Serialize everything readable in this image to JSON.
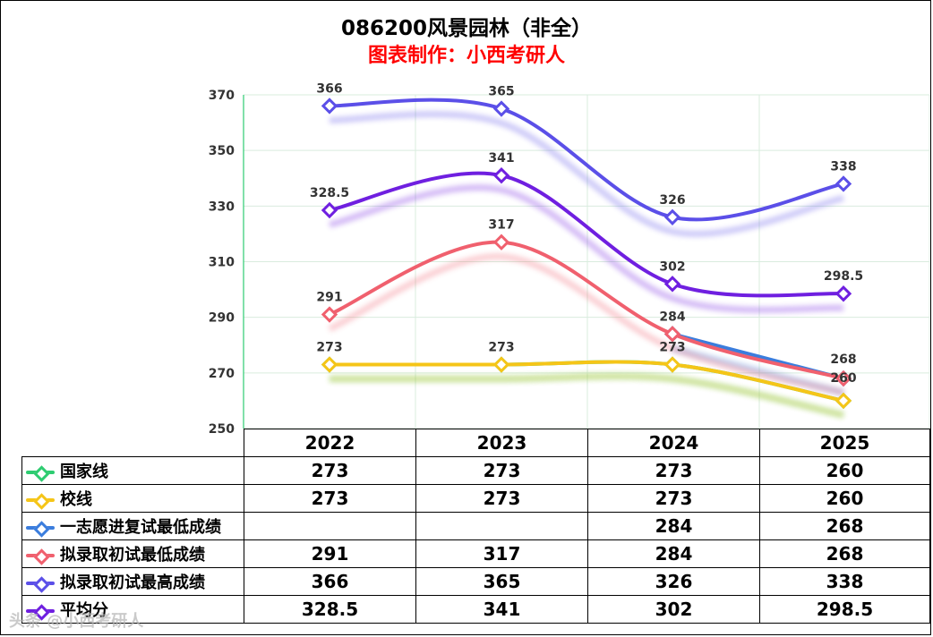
{
  "chart_data": {
    "type": "line",
    "title": "086200风景园林（非全）",
    "subtitle": "图表制作：小西考研人",
    "categories": [
      "2022",
      "2023",
      "2024",
      "2025"
    ],
    "ylim": [
      250,
      370
    ],
    "yticks": [
      250,
      270,
      290,
      310,
      330,
      350,
      370
    ],
    "grid": true,
    "smooth": true,
    "series": [
      {
        "name": "国家线",
        "color": "#2ecc71",
        "values": [
          273,
          273,
          273,
          260
        ],
        "labels": [
          "273",
          "273",
          "273",
          "260"
        ]
      },
      {
        "name": "校线",
        "color": "#f5c518",
        "values": [
          273,
          273,
          273,
          260
        ],
        "labels": [
          "273",
          "273",
          "273",
          "260"
        ]
      },
      {
        "name": "一志愿进复试最低成绩",
        "color": "#3b7ddd",
        "values": [
          null,
          null,
          284,
          268
        ],
        "labels": [
          "",
          "",
          "284",
          "268"
        ]
      },
      {
        "name": "拟录取初试最低成绩",
        "color": "#f0606e",
        "values": [
          291,
          317,
          284,
          268
        ],
        "labels": [
          "291",
          "317",
          "284",
          "268"
        ]
      },
      {
        "name": "拟录取初试最高成绩",
        "color": "#5b4fe8",
        "values": [
          366,
          365,
          326,
          338
        ],
        "labels": [
          "366",
          "365",
          "326",
          "338"
        ]
      },
      {
        "name": "平均分",
        "color": "#6f1fe0",
        "values": [
          328.5,
          341,
          302,
          298.5
        ],
        "labels": [
          "328.5",
          "341",
          "302",
          "298.5"
        ]
      }
    ]
  },
  "watermark": "头条 @小西考研人"
}
